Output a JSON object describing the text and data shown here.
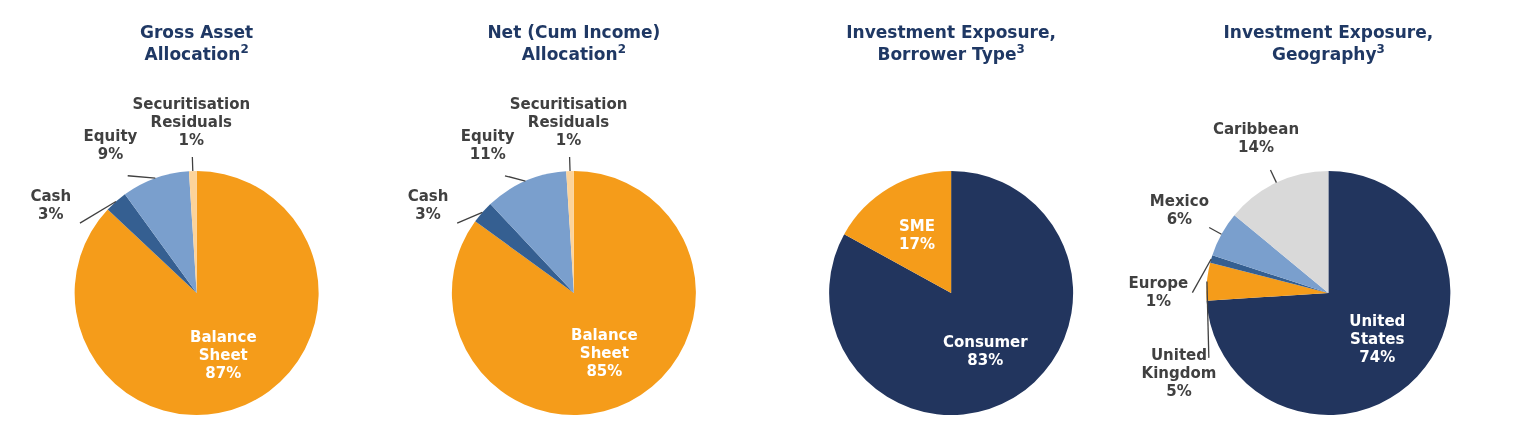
{
  "chart_data": [
    {
      "type": "pie",
      "title": "Gross Asset Allocation$^{2}$",
      "categories": [
        "Balance Sheet",
        "Cash",
        "Equity",
        "Securitisation Residuals"
      ],
      "values": [
        87,
        3,
        9,
        1
      ],
      "value_labels": [
        "87%",
        "3%",
        "9%",
        "1%"
      ],
      "colors": [
        "#f59c1a",
        "#355f91",
        "#7a9fcd",
        "#fcd39a"
      ]
    },
    {
      "type": "pie",
      "title": "Net (Cum Income) Allocation$^{2}$",
      "categories": [
        "Balance Sheet",
        "Cash",
        "Equity",
        "Securitisation Residuals"
      ],
      "values": [
        85,
        3,
        11,
        1
      ],
      "value_labels": [
        "85%",
        "3%",
        "11%",
        "1%"
      ],
      "colors": [
        "#f59c1a",
        "#355f91",
        "#7a9fcd",
        "#fcd39a"
      ]
    },
    {
      "type": "pie",
      "title": "Investment Exposure, Borrower Type$^{3}$",
      "categories": [
        "Consumer",
        "SME"
      ],
      "values": [
        83,
        17
      ],
      "value_labels": [
        "83%",
        "17%"
      ],
      "colors": [
        "#22355e",
        "#f59c1a"
      ]
    },
    {
      "type": "pie",
      "title": "Investment Exposure, Geography$^{3}$",
      "categories": [
        "United States",
        "United Kingdom",
        "Europe",
        "Mexico",
        "Caribbean"
      ],
      "values": [
        74,
        5,
        1,
        6,
        14
      ],
      "value_labels": [
        "74%",
        "5%",
        "1%",
        "6%",
        "14%"
      ],
      "colors": [
        "#22355e",
        "#f59c1a",
        "#355f91",
        "#7a9fcd",
        "#d9d9d9"
      ]
    }
  ]
}
